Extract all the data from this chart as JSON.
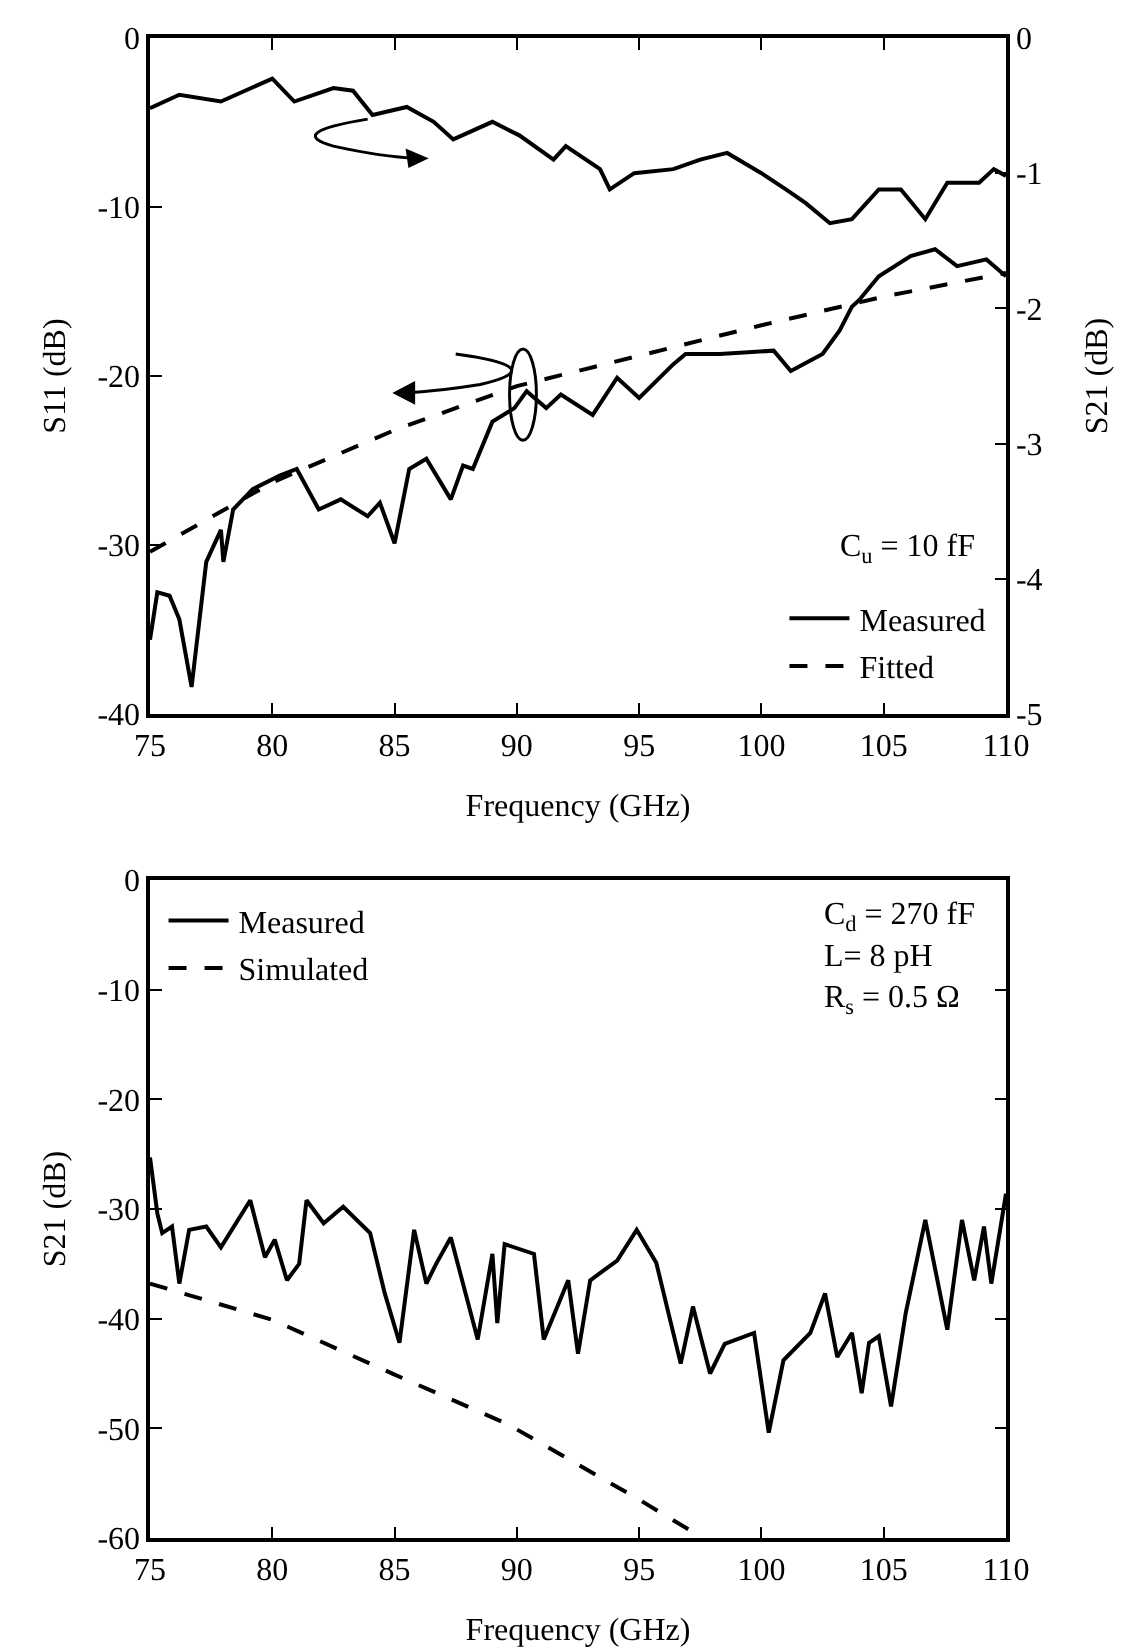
{
  "chart_data": [
    {
      "type": "line",
      "xlabel": "Frequency (GHz)",
      "ylabel": "S11 (dB)",
      "y2label": "S21 (dB)",
      "xlim": [
        75,
        110
      ],
      "xticks": [
        75,
        80,
        85,
        90,
        95,
        100,
        105,
        110
      ],
      "ylim": [
        -40,
        0
      ],
      "yticks": [
        -40,
        -30,
        -20,
        -10,
        0
      ],
      "y2lim": [
        -5,
        0
      ],
      "y2ticks": [
        -5,
        -4,
        -3,
        -2,
        -1,
        0
      ],
      "grid": false,
      "legend": "bottom right",
      "annotations": [
        "C$_{u}$ = 10 fF"
      ],
      "series": [
        {
          "axis": "y2",
          "color": "#000000",
          "line_style": "solid",
          "x": [
            75,
            76.2,
            77.9,
            80,
            80.9,
            82.5,
            83.3,
            84.1,
            85.5,
            86.6,
            87.4,
            89,
            90.1,
            91.5,
            92,
            93.4,
            93.8,
            94.8,
            96.4,
            97.5,
            98.6,
            100,
            101,
            101.8,
            102.8,
            103.7,
            104.8,
            105.7,
            106.7,
            107.6,
            108.9,
            109.5,
            110
          ],
          "values": [
            -0.52,
            -0.42,
            -0.47,
            -0.3,
            -0.47,
            -0.37,
            -0.39,
            -0.57,
            -0.51,
            -0.62,
            -0.75,
            -0.62,
            -0.72,
            -0.9,
            -0.8,
            -0.97,
            -1.12,
            -1.0,
            -0.97,
            -0.9,
            -0.85,
            -1.0,
            -1.12,
            -1.22,
            -1.37,
            -1.34,
            -1.12,
            -1.12,
            -1.34,
            -1.07,
            -1.07,
            -0.97,
            -1.02
          ]
        },
        {
          "name": "Measured",
          "color": "#000000",
          "line_style": "solid",
          "x": [
            75,
            75.3,
            75.8,
            76.2,
            76.7,
            77.3,
            77.9,
            78,
            78.4,
            79.2,
            80.3,
            81,
            81.9,
            82.8,
            83.9,
            84.4,
            85,
            85.6,
            86.3,
            87.3,
            87.8,
            88.2,
            89,
            89.9,
            90.4,
            91.2,
            91.8,
            93.1,
            94.1,
            95,
            96.4,
            96.9,
            98.3,
            100.5,
            101.2,
            102.5,
            103.2,
            103.7,
            104,
            104.8,
            106.1,
            107.1,
            108,
            109.2,
            110
          ],
          "values": [
            -35.6,
            -32.8,
            -33,
            -34.4,
            -38.4,
            -31,
            -29.1,
            -31,
            -27.9,
            -26.7,
            -25.9,
            -25.5,
            -27.9,
            -27.3,
            -28.3,
            -27.5,
            -29.9,
            -25.5,
            -24.9,
            -27.3,
            -25.3,
            -25.5,
            -22.7,
            -21.9,
            -20.9,
            -21.9,
            -21.1,
            -22.3,
            -20.1,
            -21.3,
            -19.3,
            -18.7,
            -18.7,
            -18.5,
            -19.7,
            -18.7,
            -17.3,
            -15.9,
            -15.5,
            -14.1,
            -12.9,
            -12.5,
            -13.5,
            -13.1,
            -14.1
          ]
        },
        {
          "name": "Fitted",
          "color": "#000000",
          "line_style": "dashed",
          "x": [
            75,
            80,
            85,
            90,
            95,
            100,
            105,
            110
          ],
          "values": [
            -30.4,
            -26.3,
            -23.2,
            -20.6,
            -18.8,
            -17.0,
            -15.3,
            -13.9
          ]
        }
      ]
    },
    {
      "type": "line",
      "xlabel": "Frequency (GHz)",
      "ylabel": "S21 (dB)",
      "xlim": [
        75,
        110
      ],
      "xticks": [
        75,
        80,
        85,
        90,
        95,
        100,
        105,
        110
      ],
      "ylim": [
        -60,
        0
      ],
      "yticks": [
        -60,
        -50,
        -40,
        -30,
        -20,
        -10,
        0
      ],
      "grid": false,
      "legend": "top left",
      "annotations": [
        "C$_{d}$ = 270 fF",
        "L= 8 pH",
        "R$_{s}$ = 0.5 Ω"
      ],
      "series": [
        {
          "name": "Measured",
          "color": "#000000",
          "line_style": "solid",
          "x": [
            75,
            75.3,
            75.5,
            75.9,
            76.2,
            76.6,
            77.3,
            77.9,
            79.1,
            79.7,
            80.1,
            80.6,
            81.1,
            81.4,
            82.1,
            82.9,
            84,
            84.6,
            85.2,
            85.8,
            86.3,
            86.7,
            87.3,
            88.4,
            89,
            89.2,
            89.5,
            90.7,
            91.1,
            92.1,
            92.5,
            93,
            94.1,
            94.9,
            95.7,
            96.7,
            97.2,
            97.9,
            98.5,
            99.7,
            100.3,
            100.9,
            102,
            102.6,
            103.1,
            103.7,
            104.1,
            104.4,
            104.8,
            105.3,
            105.9,
            106.7,
            107.6,
            108.2,
            108.7,
            109.1,
            109.4,
            110
          ],
          "values": [
            -25.3,
            -30.4,
            -32.2,
            -31.6,
            -36.8,
            -31.9,
            -31.6,
            -33.5,
            -29.2,
            -34.4,
            -32.8,
            -36.5,
            -35,
            -29.2,
            -31.3,
            -29.8,
            -32.2,
            -37.7,
            -42.2,
            -31.9,
            -36.8,
            -35,
            -32.6,
            -41.9,
            -34.1,
            -40.4,
            -33.2,
            -34.1,
            -41.9,
            -36.5,
            -43.2,
            -36.5,
            -34.7,
            -31.9,
            -34.9,
            -44.1,
            -38.9,
            -45,
            -42.3,
            -41.3,
            -50.4,
            -43.8,
            -41.3,
            -37.7,
            -43.5,
            -41.3,
            -46.8,
            -42.2,
            -41.6,
            -48,
            -39.5,
            -31,
            -41,
            -31,
            -36.5,
            -31.6,
            -36.8,
            -28.6
          ]
        },
        {
          "name": "Simulated",
          "color": "#000000",
          "line_style": "dashed",
          "x": [
            75,
            80,
            82.1,
            85,
            89.5,
            90,
            95,
            97.6
          ],
          "values": [
            -36.8,
            -40.1,
            -42.2,
            -45.1,
            -49.5,
            -50.1,
            -56.5,
            -60
          ]
        }
      ]
    }
  ]
}
